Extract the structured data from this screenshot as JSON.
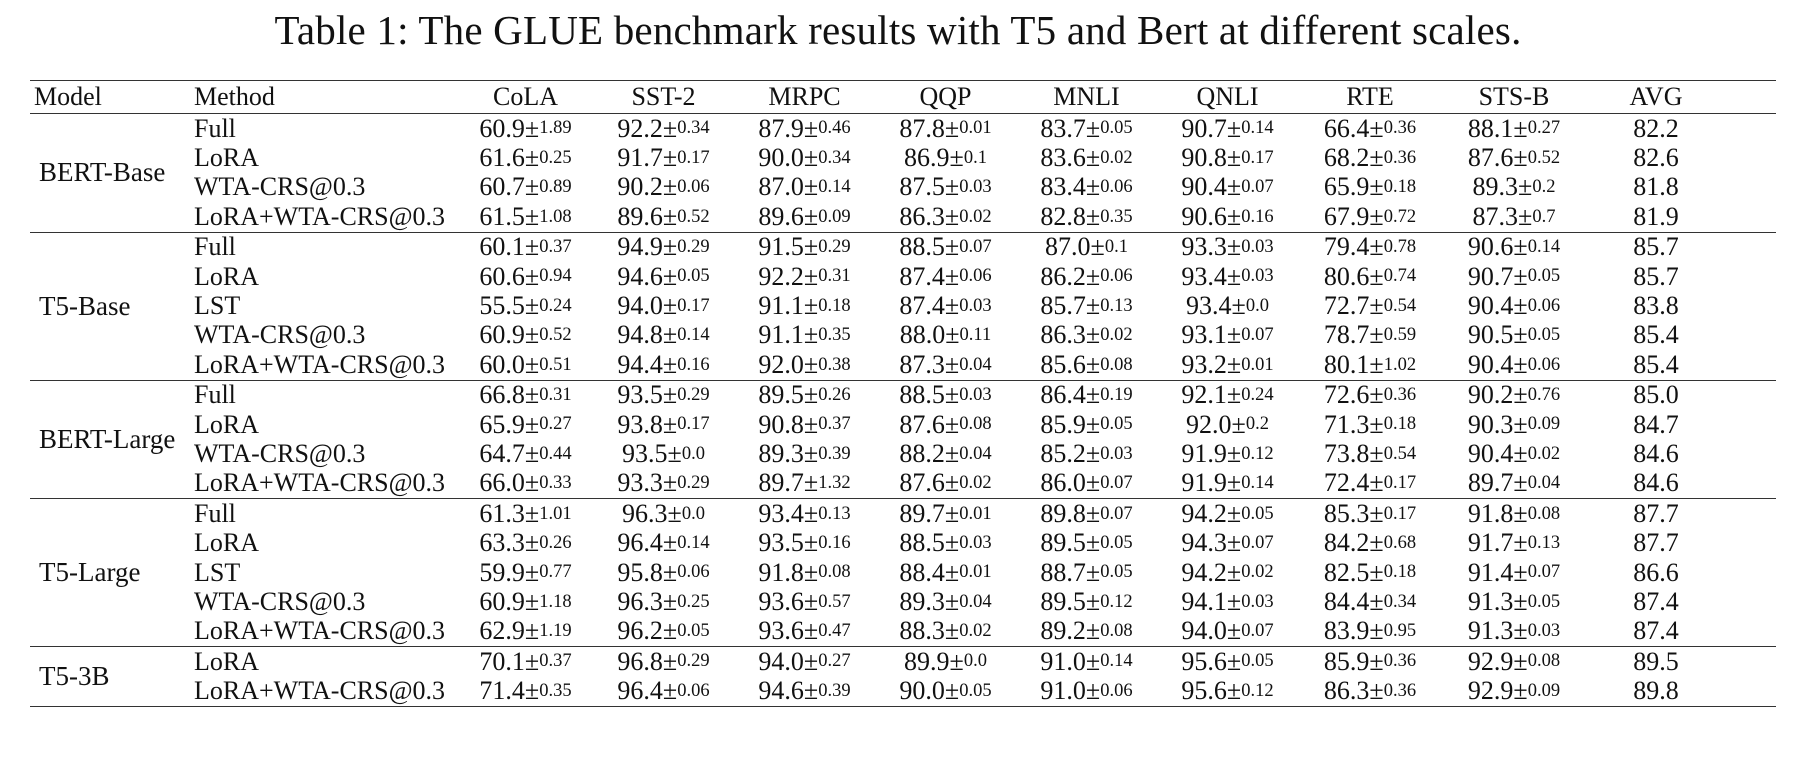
{
  "caption": "Table 1: The GLUE benchmark results with T5 and Bert at different scales.",
  "headers": [
    "Model",
    "Method",
    "CoLA",
    "SST-2",
    "MRPC",
    "QQP",
    "MNLI",
    "QNLI",
    "RTE",
    "STS-B",
    "AVG"
  ],
  "groups": [
    {
      "model": "BERT-Base",
      "rows": [
        {
          "method": "Full",
          "scores": [
            {
              "m": "60.9",
              "s": "1.89"
            },
            {
              "m": "92.2",
              "s": "0.34"
            },
            {
              "m": "87.9",
              "s": "0.46"
            },
            {
              "m": "87.8",
              "s": "0.01"
            },
            {
              "m": "83.7",
              "s": "0.05"
            },
            {
              "m": "90.7",
              "s": "0.14"
            },
            {
              "m": "66.4",
              "s": "0.36"
            },
            {
              "m": "88.1",
              "s": "0.27"
            }
          ],
          "avg": "82.2"
        },
        {
          "method": "LoRA",
          "scores": [
            {
              "m": "61.6",
              "s": "0.25"
            },
            {
              "m": "91.7",
              "s": "0.17"
            },
            {
              "m": "90.0",
              "s": "0.34"
            },
            {
              "m": "86.9",
              "s": "0.1"
            },
            {
              "m": "83.6",
              "s": "0.02"
            },
            {
              "m": "90.8",
              "s": "0.17"
            },
            {
              "m": "68.2",
              "s": "0.36"
            },
            {
              "m": "87.6",
              "s": "0.52"
            }
          ],
          "avg": "82.6"
        },
        {
          "method": "WTA-CRS@0.3",
          "scores": [
            {
              "m": "60.7",
              "s": "0.89"
            },
            {
              "m": "90.2",
              "s": "0.06"
            },
            {
              "m": "87.0",
              "s": "0.14"
            },
            {
              "m": "87.5",
              "s": "0.03"
            },
            {
              "m": "83.4",
              "s": "0.06"
            },
            {
              "m": "90.4",
              "s": "0.07"
            },
            {
              "m": "65.9",
              "s": "0.18"
            },
            {
              "m": "89.3",
              "s": "0.2"
            }
          ],
          "avg": "81.8"
        },
        {
          "method": "LoRA+WTA-CRS@0.3",
          "scores": [
            {
              "m": "61.5",
              "s": "1.08"
            },
            {
              "m": "89.6",
              "s": "0.52"
            },
            {
              "m": "89.6",
              "s": "0.09"
            },
            {
              "m": "86.3",
              "s": "0.02"
            },
            {
              "m": "82.8",
              "s": "0.35"
            },
            {
              "m": "90.6",
              "s": "0.16"
            },
            {
              "m": "67.9",
              "s": "0.72"
            },
            {
              "m": "87.3",
              "s": "0.7"
            }
          ],
          "avg": "81.9"
        }
      ]
    },
    {
      "model": "T5-Base",
      "rows": [
        {
          "method": "Full",
          "scores": [
            {
              "m": "60.1",
              "s": "0.37"
            },
            {
              "m": "94.9",
              "s": "0.29"
            },
            {
              "m": "91.5",
              "s": "0.29"
            },
            {
              "m": "88.5",
              "s": "0.07"
            },
            {
              "m": "87.0",
              "s": "0.1"
            },
            {
              "m": "93.3",
              "s": "0.03"
            },
            {
              "m": "79.4",
              "s": "0.78"
            },
            {
              "m": "90.6",
              "s": "0.14"
            }
          ],
          "avg": "85.7"
        },
        {
          "method": "LoRA",
          "scores": [
            {
              "m": "60.6",
              "s": "0.94"
            },
            {
              "m": "94.6",
              "s": "0.05"
            },
            {
              "m": "92.2",
              "s": "0.31"
            },
            {
              "m": "87.4",
              "s": "0.06"
            },
            {
              "m": "86.2",
              "s": "0.06"
            },
            {
              "m": "93.4",
              "s": "0.03"
            },
            {
              "m": "80.6",
              "s": "0.74"
            },
            {
              "m": "90.7",
              "s": "0.05"
            }
          ],
          "avg": "85.7"
        },
        {
          "method": "LST",
          "scores": [
            {
              "m": "55.5",
              "s": "0.24"
            },
            {
              "m": "94.0",
              "s": "0.17"
            },
            {
              "m": "91.1",
              "s": "0.18"
            },
            {
              "m": "87.4",
              "s": "0.03"
            },
            {
              "m": "85.7",
              "s": "0.13"
            },
            {
              "m": "93.4",
              "s": "0.0"
            },
            {
              "m": "72.7",
              "s": "0.54"
            },
            {
              "m": "90.4",
              "s": "0.06"
            }
          ],
          "avg": "83.8"
        },
        {
          "method": "WTA-CRS@0.3",
          "scores": [
            {
              "m": "60.9",
              "s": "0.52"
            },
            {
              "m": "94.8",
              "s": "0.14"
            },
            {
              "m": "91.1",
              "s": "0.35"
            },
            {
              "m": "88.0",
              "s": "0.11"
            },
            {
              "m": "86.3",
              "s": "0.02"
            },
            {
              "m": "93.1",
              "s": "0.07"
            },
            {
              "m": "78.7",
              "s": "0.59"
            },
            {
              "m": "90.5",
              "s": "0.05"
            }
          ],
          "avg": "85.4"
        },
        {
          "method": "LoRA+WTA-CRS@0.3",
          "scores": [
            {
              "m": "60.0",
              "s": "0.51"
            },
            {
              "m": "94.4",
              "s": "0.16"
            },
            {
              "m": "92.0",
              "s": "0.38"
            },
            {
              "m": "87.3",
              "s": "0.04"
            },
            {
              "m": "85.6",
              "s": "0.08"
            },
            {
              "m": "93.2",
              "s": "0.01"
            },
            {
              "m": "80.1",
              "s": "1.02"
            },
            {
              "m": "90.4",
              "s": "0.06"
            }
          ],
          "avg": "85.4"
        }
      ]
    },
    {
      "model": "BERT-Large",
      "rows": [
        {
          "method": "Full",
          "scores": [
            {
              "m": "66.8",
              "s": "0.31"
            },
            {
              "m": "93.5",
              "s": "0.29"
            },
            {
              "m": "89.5",
              "s": "0.26"
            },
            {
              "m": "88.5",
              "s": "0.03"
            },
            {
              "m": "86.4",
              "s": "0.19"
            },
            {
              "m": "92.1",
              "s": "0.24"
            },
            {
              "m": "72.6",
              "s": "0.36"
            },
            {
              "m": "90.2",
              "s": "0.76"
            }
          ],
          "avg": "85.0"
        },
        {
          "method": "LoRA",
          "scores": [
            {
              "m": "65.9",
              "s": "0.27"
            },
            {
              "m": "93.8",
              "s": "0.17"
            },
            {
              "m": "90.8",
              "s": "0.37"
            },
            {
              "m": "87.6",
              "s": "0.08"
            },
            {
              "m": "85.9",
              "s": "0.05"
            },
            {
              "m": "92.0",
              "s": "0.2"
            },
            {
              "m": "71.3",
              "s": "0.18"
            },
            {
              "m": "90.3",
              "s": "0.09"
            }
          ],
          "avg": "84.7"
        },
        {
          "method": "WTA-CRS@0.3",
          "scores": [
            {
              "m": "64.7",
              "s": "0.44"
            },
            {
              "m": "93.5",
              "s": "0.0"
            },
            {
              "m": "89.3",
              "s": "0.39"
            },
            {
              "m": "88.2",
              "s": "0.04"
            },
            {
              "m": "85.2",
              "s": "0.03"
            },
            {
              "m": "91.9",
              "s": "0.12"
            },
            {
              "m": "73.8",
              "s": "0.54"
            },
            {
              "m": "90.4",
              "s": "0.02"
            }
          ],
          "avg": "84.6"
        },
        {
          "method": "LoRA+WTA-CRS@0.3",
          "scores": [
            {
              "m": "66.0",
              "s": "0.33"
            },
            {
              "m": "93.3",
              "s": "0.29"
            },
            {
              "m": "89.7",
              "s": "1.32"
            },
            {
              "m": "87.6",
              "s": "0.02"
            },
            {
              "m": "86.0",
              "s": "0.07"
            },
            {
              "m": "91.9",
              "s": "0.14"
            },
            {
              "m": "72.4",
              "s": "0.17"
            },
            {
              "m": "89.7",
              "s": "0.04"
            }
          ],
          "avg": "84.6"
        }
      ]
    },
    {
      "model": "T5-Large",
      "rows": [
        {
          "method": "Full",
          "scores": [
            {
              "m": "61.3",
              "s": "1.01"
            },
            {
              "m": "96.3",
              "s": "0.0"
            },
            {
              "m": "93.4",
              "s": "0.13"
            },
            {
              "m": "89.7",
              "s": "0.01"
            },
            {
              "m": "89.8",
              "s": "0.07"
            },
            {
              "m": "94.2",
              "s": "0.05"
            },
            {
              "m": "85.3",
              "s": "0.17"
            },
            {
              "m": "91.8",
              "s": "0.08"
            }
          ],
          "avg": "87.7"
        },
        {
          "method": "LoRA",
          "scores": [
            {
              "m": "63.3",
              "s": "0.26"
            },
            {
              "m": "96.4",
              "s": "0.14"
            },
            {
              "m": "93.5",
              "s": "0.16"
            },
            {
              "m": "88.5",
              "s": "0.03"
            },
            {
              "m": "89.5",
              "s": "0.05"
            },
            {
              "m": "94.3",
              "s": "0.07"
            },
            {
              "m": "84.2",
              "s": "0.68"
            },
            {
              "m": "91.7",
              "s": "0.13"
            }
          ],
          "avg": "87.7"
        },
        {
          "method": "LST",
          "scores": [
            {
              "m": "59.9",
              "s": "0.77"
            },
            {
              "m": "95.8",
              "s": "0.06"
            },
            {
              "m": "91.8",
              "s": "0.08"
            },
            {
              "m": "88.4",
              "s": "0.01"
            },
            {
              "m": "88.7",
              "s": "0.05"
            },
            {
              "m": "94.2",
              "s": "0.02"
            },
            {
              "m": "82.5",
              "s": "0.18"
            },
            {
              "m": "91.4",
              "s": "0.07"
            }
          ],
          "avg": "86.6"
        },
        {
          "method": "WTA-CRS@0.3",
          "scores": [
            {
              "m": "60.9",
              "s": "1.18"
            },
            {
              "m": "96.3",
              "s": "0.25"
            },
            {
              "m": "93.6",
              "s": "0.57"
            },
            {
              "m": "89.3",
              "s": "0.04"
            },
            {
              "m": "89.5",
              "s": "0.12"
            },
            {
              "m": "94.1",
              "s": "0.03"
            },
            {
              "m": "84.4",
              "s": "0.34"
            },
            {
              "m": "91.3",
              "s": "0.05"
            }
          ],
          "avg": "87.4"
        },
        {
          "method": "LoRA+WTA-CRS@0.3",
          "scores": [
            {
              "m": "62.9",
              "s": "1.19"
            },
            {
              "m": "96.2",
              "s": "0.05"
            },
            {
              "m": "93.6",
              "s": "0.47"
            },
            {
              "m": "88.3",
              "s": "0.02"
            },
            {
              "m": "89.2",
              "s": "0.08"
            },
            {
              "m": "94.0",
              "s": "0.07"
            },
            {
              "m": "83.9",
              "s": "0.95"
            },
            {
              "m": "91.3",
              "s": "0.03"
            }
          ],
          "avg": "87.4"
        }
      ]
    },
    {
      "model": "T5-3B",
      "rows": [
        {
          "method": "LoRA",
          "scores": [
            {
              "m": "70.1",
              "s": "0.37"
            },
            {
              "m": "96.8",
              "s": "0.29"
            },
            {
              "m": "94.0",
              "s": "0.27"
            },
            {
              "m": "89.9",
              "s": "0.0"
            },
            {
              "m": "91.0",
              "s": "0.14"
            },
            {
              "m": "95.6",
              "s": "0.05"
            },
            {
              "m": "85.9",
              "s": "0.36"
            },
            {
              "m": "92.9",
              "s": "0.08"
            }
          ],
          "avg": "89.5"
        },
        {
          "method": "LoRA+WTA-CRS@0.3",
          "scores": [
            {
              "m": "71.4",
              "s": "0.35"
            },
            {
              "m": "96.4",
              "s": "0.06"
            },
            {
              "m": "94.6",
              "s": "0.39"
            },
            {
              "m": "90.0",
              "s": "0.05"
            },
            {
              "m": "91.0",
              "s": "0.06"
            },
            {
              "m": "95.6",
              "s": "0.12"
            },
            {
              "m": "86.3",
              "s": "0.36"
            },
            {
              "m": "92.9",
              "s": "0.09"
            }
          ],
          "avg": "89.8"
        }
      ]
    }
  ]
}
